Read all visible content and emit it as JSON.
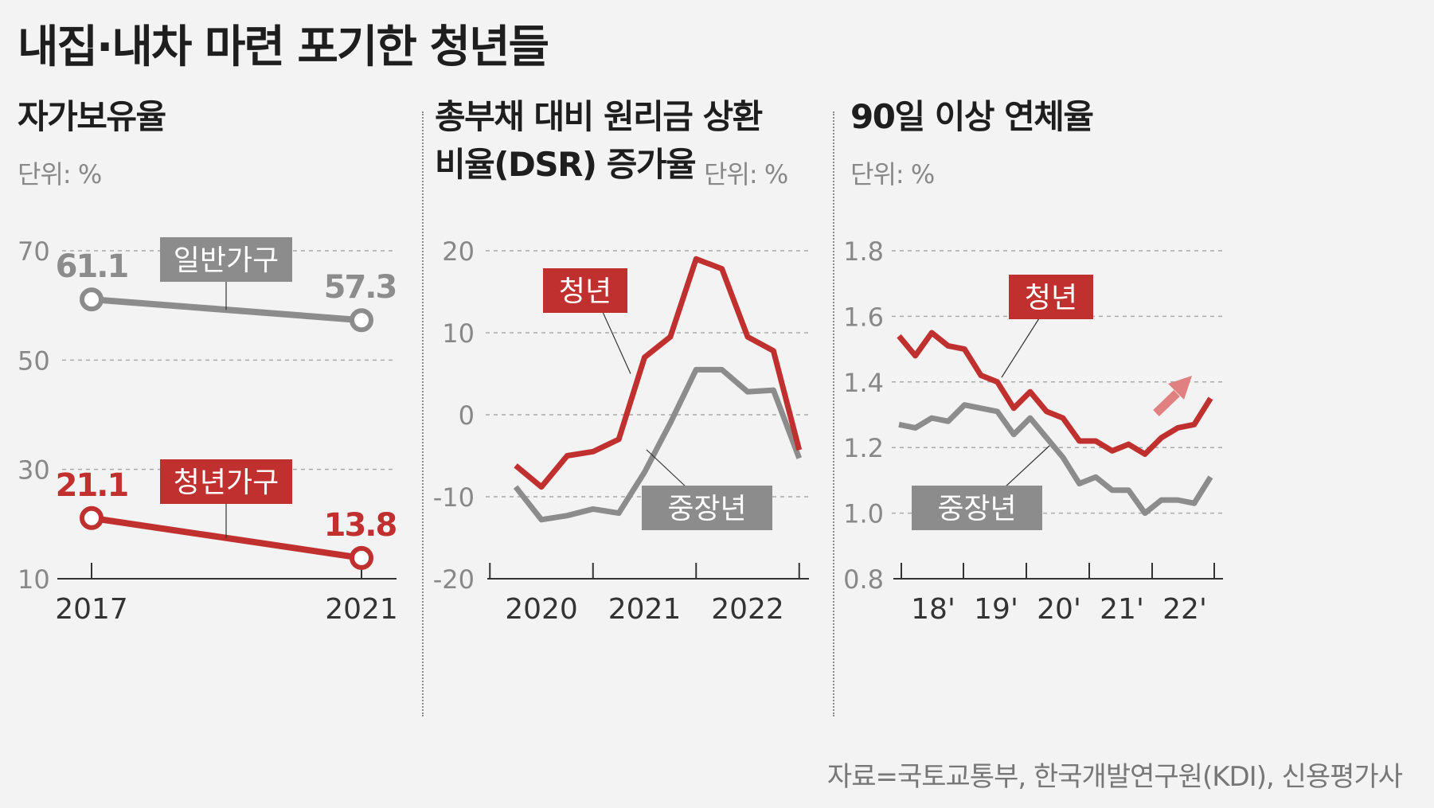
{
  "title": "내집·내차 마련 포기한 청년들",
  "source": "자료=국토교통부, 한국개발연구원(KDI), 신용평가사",
  "colors": {
    "red": "#c0302f",
    "gray": "#8c8c8c",
    "arrow": "#e08080"
  },
  "panels": {
    "home": {
      "title": "자가보유율",
      "unit": "단위: %"
    },
    "dsr": {
      "title_line1": "총부채 대비 원리금 상환",
      "title_line2": "비율(DSR) 증가율",
      "unit": "단위: %"
    },
    "overdue": {
      "title": "90일 이상 연체율",
      "unit": "단위: %"
    }
  },
  "chart_data": [
    {
      "type": "line",
      "title": "자가보유율",
      "unit": "단위: %",
      "x": [
        "2017",
        "2021"
      ],
      "yticks": [
        "70",
        "50",
        "30",
        "10"
      ],
      "ylim": [
        10,
        70
      ],
      "series": [
        {
          "name": "일반가구",
          "values": [
            61.1,
            57.3
          ],
          "value_labels": [
            "61.1",
            "57.3"
          ],
          "color": "#8c8c8c"
        },
        {
          "name": "청년가구",
          "values": [
            21.1,
            13.8
          ],
          "value_labels": [
            "21.1",
            "13.8"
          ],
          "color": "#c0302f"
        }
      ]
    },
    {
      "type": "line",
      "title": "총부채 대비 원리금 상환 비율(DSR) 증가율",
      "unit": "단위: %",
      "x_labels": [
        "2020",
        "2021",
        "2022"
      ],
      "yticks": [
        "20",
        "10",
        "0",
        "-10",
        "-20"
      ],
      "ylim": [
        -20,
        20
      ],
      "x_start": 2019.75,
      "step": 0.25,
      "series": [
        {
          "name": "청년",
          "color": "#c0302f",
          "values": [
            -6.2,
            -8.8,
            -5,
            -4.5,
            -3,
            7,
            9.5,
            19,
            17.8,
            9.5,
            7.8,
            -4.3
          ]
        },
        {
          "name": "중장년",
          "color": "#8c8c8c",
          "values": [
            -8.8,
            -12.8,
            -12.3,
            -11.5,
            -12,
            -7,
            -1,
            5.5,
            5.5,
            2.8,
            3,
            -5.3
          ]
        }
      ]
    },
    {
      "type": "line",
      "title": "90일 이상 연체율",
      "unit": "단위: %",
      "x_labels": [
        "18'",
        "19'",
        "20'",
        "21'",
        "22'"
      ],
      "yticks": [
        "1.8",
        "1.6",
        "1.4",
        "1.2",
        "1.0",
        "0.8"
      ],
      "ylim": [
        0.8,
        1.8
      ],
      "series": [
        {
          "name": "청년",
          "color": "#c0302f",
          "values": [
            1.54,
            1.48,
            1.55,
            1.51,
            1.5,
            1.42,
            1.4,
            1.32,
            1.37,
            1.31,
            1.29,
            1.22,
            1.22,
            1.19,
            1.21,
            1.18,
            1.23,
            1.26,
            1.27,
            1.35
          ]
        },
        {
          "name": "중장년",
          "color": "#8c8c8c",
          "values": [
            1.27,
            1.26,
            1.29,
            1.28,
            1.33,
            1.32,
            1.31,
            1.24,
            1.29,
            1.23,
            1.17,
            1.09,
            1.11,
            1.07,
            1.07,
            1.0,
            1.04,
            1.04,
            1.03,
            1.11
          ]
        }
      ]
    }
  ]
}
